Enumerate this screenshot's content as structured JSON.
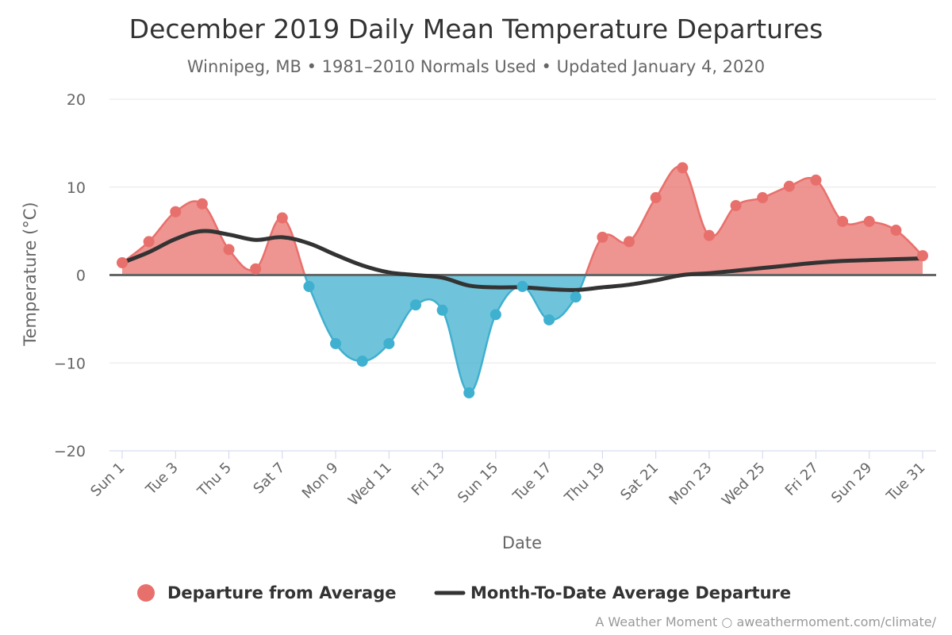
{
  "chart_data": {
    "type": "area",
    "title": "December 2019 Daily Mean Temperature Departures",
    "subtitle": "Winnipeg, MB • 1981–2010 Normals Used • Updated January 4, 2020",
    "xlabel": "Date",
    "ylabel": "Temperature (°C)",
    "ylim": [
      -20,
      20
    ],
    "y_ticks": [
      "20",
      "10",
      "0",
      "−10",
      "−20"
    ],
    "y_tick_values": [
      20,
      10,
      0,
      -10,
      -20
    ],
    "grid": true,
    "legend_position": "bottom",
    "x": [
      1,
      2,
      3,
      4,
      5,
      6,
      7,
      8,
      9,
      10,
      11,
      12,
      13,
      14,
      15,
      16,
      17,
      18,
      19,
      20,
      21,
      22,
      23,
      24,
      25,
      26,
      27,
      28,
      29,
      30,
      31
    ],
    "x_tick_labels": [
      "Sun 1",
      "Tue 3",
      "Thu 5",
      "Sat 7",
      "Mon 9",
      "Wed 11",
      "Fri 13",
      "Sun 15",
      "Tue 17",
      "Thu 19",
      "Sat 21",
      "Mon 23",
      "Wed 25",
      "Fri 27",
      "Sun 29",
      "Tue 31"
    ],
    "x_tick_days": [
      1,
      3,
      5,
      7,
      9,
      11,
      13,
      15,
      17,
      19,
      21,
      23,
      25,
      27,
      29,
      31
    ],
    "series": [
      {
        "name": "Departure from Average",
        "type": "area",
        "positive_color": "#e8706c",
        "negative_color": "#3fb0cf",
        "values": [
          1.4,
          3.8,
          7.2,
          8.1,
          2.9,
          0.7,
          6.5,
          -1.3,
          -7.8,
          -9.8,
          -7.8,
          -3.4,
          -4.0,
          -13.4,
          -4.5,
          -1.3,
          -5.1,
          -2.5,
          4.3,
          3.8,
          8.8,
          12.2,
          4.5,
          7.9,
          8.8,
          10.1,
          10.8,
          6.1,
          6.1,
          5.1,
          2.2
        ]
      },
      {
        "name": "Month-To-Date Average Departure",
        "type": "line",
        "color": "#333333",
        "values": [
          1.4,
          2.6,
          4.1,
          5.0,
          4.6,
          4.0,
          4.3,
          3.6,
          2.3,
          1.1,
          0.3,
          0.0,
          -0.3,
          -1.2,
          -1.4,
          -1.4,
          -1.6,
          -1.7,
          -1.4,
          -1.1,
          -0.6,
          0.0,
          0.2,
          0.5,
          0.8,
          1.1,
          1.4,
          1.6,
          1.7,
          1.8,
          1.9
        ]
      }
    ],
    "credit": "A Weather Moment ○ aweathermoment.com/climate/"
  }
}
